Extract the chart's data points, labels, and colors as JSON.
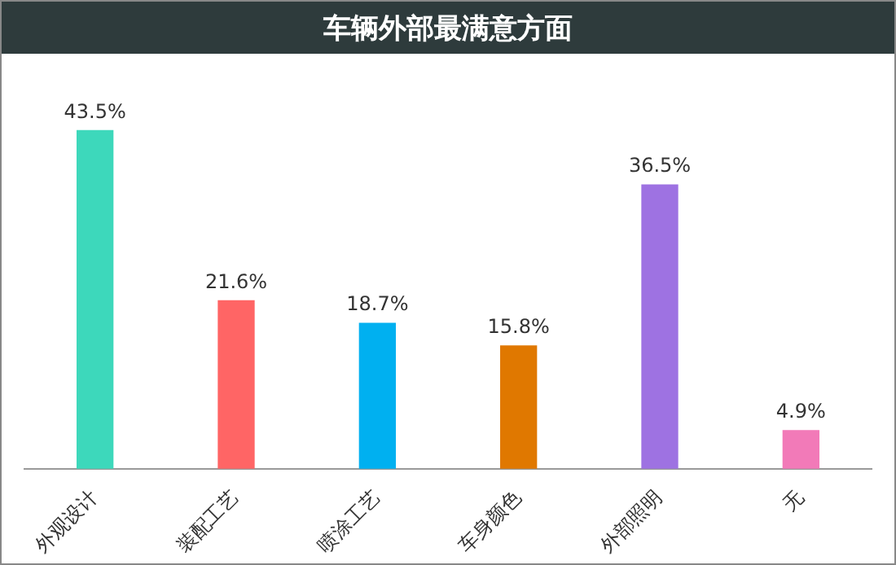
{
  "chart_data": {
    "type": "bar",
    "title": "车辆外部最满意方面",
    "categories": [
      "外观设计",
      "装配工艺",
      "喷涂工艺",
      "车身颜色",
      "外部照明",
      "无"
    ],
    "values": [
      43.5,
      21.6,
      18.7,
      15.8,
      36.5,
      4.9
    ],
    "value_labels": [
      "43.5%",
      "21.6%",
      "18.7%",
      "15.8%",
      "36.5%",
      "4.9%"
    ],
    "colors": [
      "#3dd8bb",
      "#ff6565",
      "#00b0f0",
      "#e07800",
      "#9e72e2",
      "#f27ab8"
    ],
    "grid": false,
    "legend": false
  }
}
